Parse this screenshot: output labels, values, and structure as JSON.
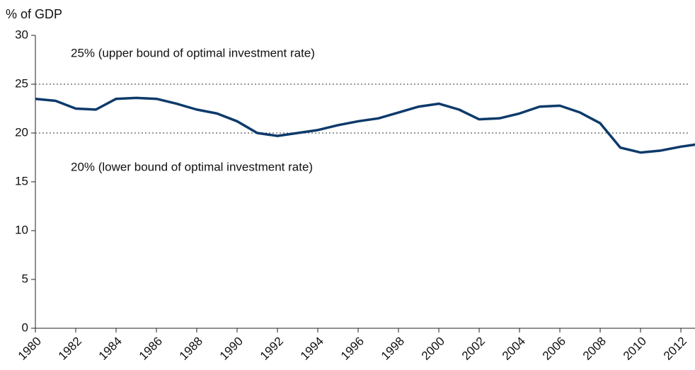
{
  "chart_data": {
    "type": "line",
    "y_label": "% of GDP",
    "x": [
      1980,
      1981,
      1982,
      1983,
      1984,
      1985,
      1986,
      1987,
      1988,
      1989,
      1990,
      1991,
      1992,
      1993,
      1994,
      1995,
      1996,
      1997,
      1998,
      1999,
      2000,
      2001,
      2002,
      2003,
      2004,
      2005,
      2006,
      2007,
      2008,
      2009,
      2010,
      2011,
      2012,
      2013
    ],
    "series": [
      {
        "color": "#0d3a6b",
        "values": [
          23.5,
          23.3,
          22.5,
          22.4,
          23.5,
          23.6,
          23.5,
          23.0,
          22.4,
          22.0,
          21.2,
          20.0,
          19.7,
          20.0,
          20.3,
          20.8,
          21.2,
          21.5,
          22.1,
          22.7,
          23.0,
          22.4,
          21.4,
          21.5,
          22.0,
          22.7,
          22.8,
          22.1,
          21.0,
          18.5,
          18.0,
          18.2,
          18.6,
          18.9
        ]
      }
    ],
    "xlim": [
      1980,
      2012.7
    ],
    "xticks": [
      1980,
      1982,
      1984,
      1986,
      1988,
      1990,
      1992,
      1994,
      1996,
      1998,
      2000,
      2002,
      2004,
      2006,
      2008,
      2010,
      2012
    ],
    "ylim": [
      0,
      30
    ],
    "yticks": [
      0,
      5,
      10,
      15,
      20,
      25,
      30
    ],
    "reference_lines": [
      {
        "value": 25,
        "label": "25% (upper bound of optimal investment rate)"
      },
      {
        "value": 20,
        "label": "20% (lower bound of optimal investment rate)"
      }
    ]
  }
}
